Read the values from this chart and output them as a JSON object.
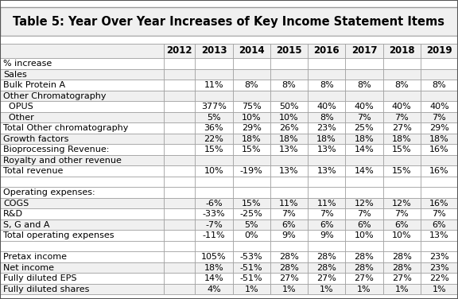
{
  "title": "Table 5: Year Over Year Increases of Key Income Statement Items",
  "columns": [
    "",
    "2012",
    "2013",
    "2014",
    "2015",
    "2016",
    "2017",
    "2018",
    "2019"
  ],
  "rows": [
    [
      "% increase",
      "",
      "",
      "",
      "",
      "",
      "",
      "",
      ""
    ],
    [
      "Sales",
      "",
      "",
      "",
      "",
      "",
      "",
      "",
      ""
    ],
    [
      "Bulk Protein A",
      "",
      "11%",
      "8%",
      "8%",
      "8%",
      "8%",
      "8%",
      "8%"
    ],
    [
      "Other Chromatography",
      "",
      "",
      "",
      "",
      "",
      "",
      "",
      ""
    ],
    [
      "  OPUS",
      "",
      "377%",
      "75%",
      "50%",
      "40%",
      "40%",
      "40%",
      "40%"
    ],
    [
      "  Other",
      "",
      "5%",
      "10%",
      "10%",
      "8%",
      "7%",
      "7%",
      "7%"
    ],
    [
      "Total Other chromatography",
      "",
      "36%",
      "29%",
      "26%",
      "23%",
      "25%",
      "27%",
      "29%"
    ],
    [
      "Growth factors",
      "",
      "22%",
      "18%",
      "18%",
      "18%",
      "18%",
      "18%",
      "18%"
    ],
    [
      "Bioprocessing Revenue:",
      "",
      "15%",
      "15%",
      "13%",
      "13%",
      "14%",
      "15%",
      "16%"
    ],
    [
      "Royalty and other revenue",
      "",
      "",
      "",
      "",
      "",
      "",
      "",
      ""
    ],
    [
      "Total revenue",
      "",
      "10%",
      "-19%",
      "13%",
      "13%",
      "14%",
      "15%",
      "16%"
    ],
    [
      "",
      "",
      "",
      "",
      "",
      "",
      "",
      "",
      ""
    ],
    [
      "Operating expenses:",
      "",
      "",
      "",
      "",
      "",
      "",
      "",
      ""
    ],
    [
      "COGS",
      "",
      "-6%",
      "15%",
      "11%",
      "11%",
      "12%",
      "12%",
      "16%"
    ],
    [
      "R&D",
      "",
      "-33%",
      "-25%",
      "7%",
      "7%",
      "7%",
      "7%",
      "7%"
    ],
    [
      "S, G and A",
      "",
      "-7%",
      "5%",
      "6%",
      "6%",
      "6%",
      "6%",
      "6%"
    ],
    [
      "Total operating expenses",
      "",
      "-11%",
      "0%",
      "9%",
      "9%",
      "10%",
      "10%",
      "13%"
    ],
    [
      "",
      "",
      "",
      "",
      "",
      "",
      "",
      "",
      ""
    ],
    [
      "Pretax income",
      "",
      "105%",
      "-53%",
      "28%",
      "28%",
      "28%",
      "28%",
      "23%"
    ],
    [
      "Net income",
      "",
      "18%",
      "-51%",
      "28%",
      "28%",
      "28%",
      "28%",
      "23%"
    ],
    [
      "Fully diluted EPS",
      "",
      "14%",
      "-51%",
      "27%",
      "27%",
      "27%",
      "27%",
      "22%"
    ],
    [
      "Fully diluted shares",
      "",
      "4%",
      "1%",
      "1%",
      "1%",
      "1%",
      "1%",
      "1%"
    ]
  ],
  "header_bg": "#d4d0c8",
  "title_bg": "#f0f0f0",
  "row_bg_white": "#ffffff",
  "row_bg_gray": "#f0f0f0",
  "border_color": "#999999",
  "text_color": "#000000",
  "title_fontsize": 10.5,
  "cell_fontsize": 8,
  "header_fontsize": 8.5,
  "col_widths_rel": [
    2.7,
    0.52,
    0.62,
    0.62,
    0.62,
    0.62,
    0.62,
    0.62,
    0.62
  ],
  "fig_width": 5.76,
  "fig_height": 3.76,
  "fig_dpi": 100
}
